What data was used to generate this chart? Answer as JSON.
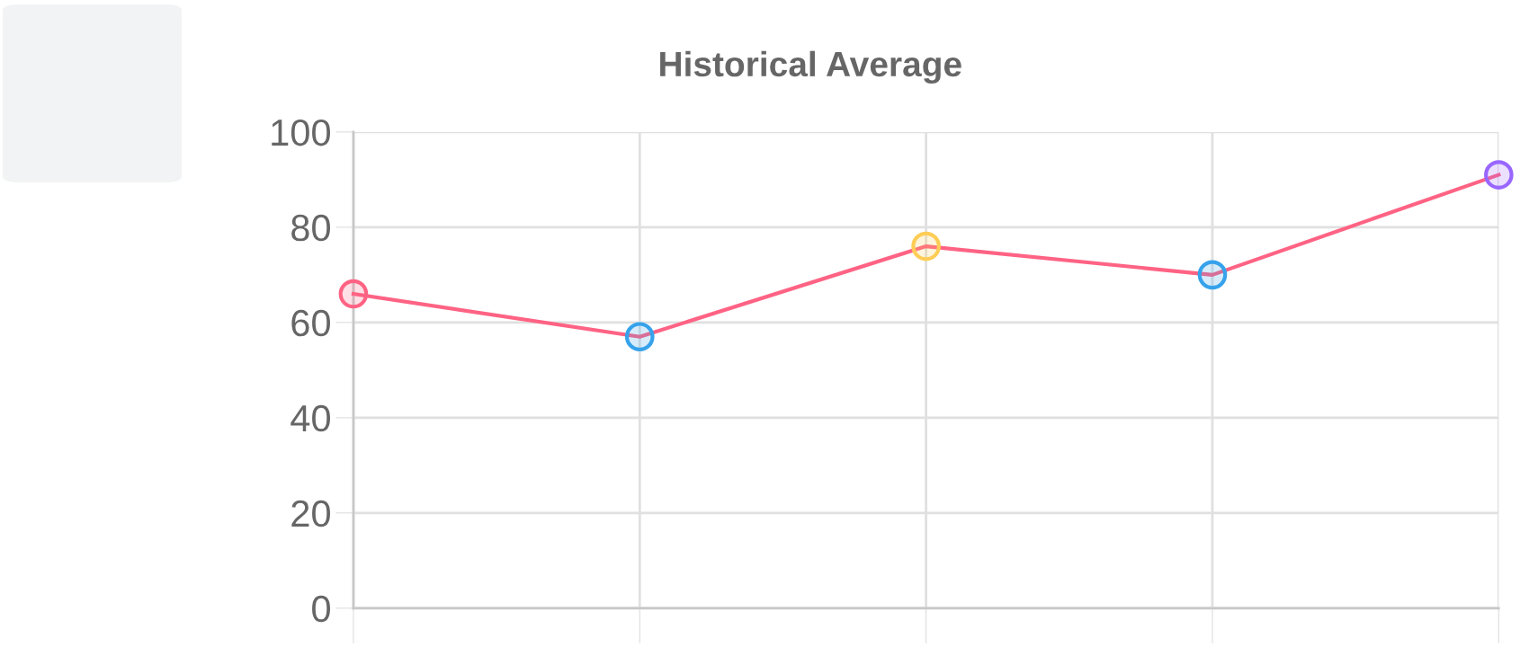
{
  "chart_data": {
    "type": "line",
    "title": "Historical Average",
    "categories": [
      null,
      null,
      null,
      null,
      null
    ],
    "series": [
      {
        "color": "#ff6384",
        "colors": [
          "#ff6384",
          "#36a2eb",
          "#ffcd56",
          "#36a2eb",
          "#9966ff"
        ],
        "values": [
          66,
          57,
          76,
          70,
          91
        ]
      }
    ],
    "ylim": [
      0,
      100
    ],
    "yticks": [
      0,
      20,
      40,
      60,
      80,
      100
    ],
    "grid": true,
    "marker": "circle",
    "line_style": "solid",
    "tick_labels": "y"
  }
}
